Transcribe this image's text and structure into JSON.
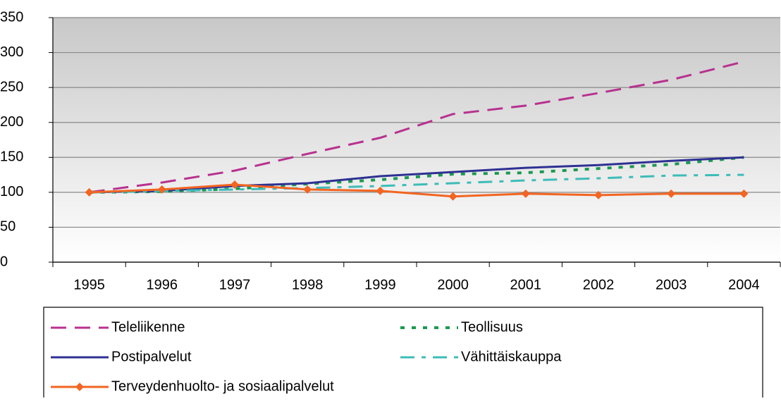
{
  "chart_data": {
    "type": "line",
    "categories": [
      "1995",
      "1996",
      "1997",
      "1998",
      "1999",
      "2000",
      "2001",
      "2002",
      "2003",
      "2004"
    ],
    "series": [
      {
        "name": "Teleliikenne",
        "color": "#b8318f",
        "style": "dashed",
        "values": [
          100,
          114,
          131,
          155,
          178,
          212,
          224,
          242,
          261,
          287
        ]
      },
      {
        "name": "Teollisuus",
        "color": "#1a9a50",
        "style": "dotted",
        "values": [
          100,
          101,
          105,
          112,
          118,
          126,
          128,
          134,
          140,
          150
        ]
      },
      {
        "name": "Postipalvelut",
        "color": "#2e3192",
        "style": "solid",
        "values": [
          100,
          102,
          109,
          113,
          123,
          129,
          135,
          139,
          145,
          150
        ]
      },
      {
        "name": "Vähittäiskauppa",
        "color": "#3dbcb8",
        "style": "dashdot",
        "values": [
          100,
          102,
          104,
          106,
          109,
          113,
          117,
          120,
          124,
          125
        ]
      },
      {
        "name": "Terveydenhuolto- ja sosiaalipalvelut",
        "color": "#f26522",
        "style": "solid",
        "marker": "diamond",
        "values": [
          100,
          104,
          111,
          104,
          102,
          94,
          98,
          96,
          98,
          98
        ]
      }
    ],
    "ylim": [
      0,
      350
    ],
    "yticks": [
      0,
      50,
      100,
      150,
      200,
      250,
      300,
      350
    ],
    "grid": true,
    "legend": "bottom"
  }
}
